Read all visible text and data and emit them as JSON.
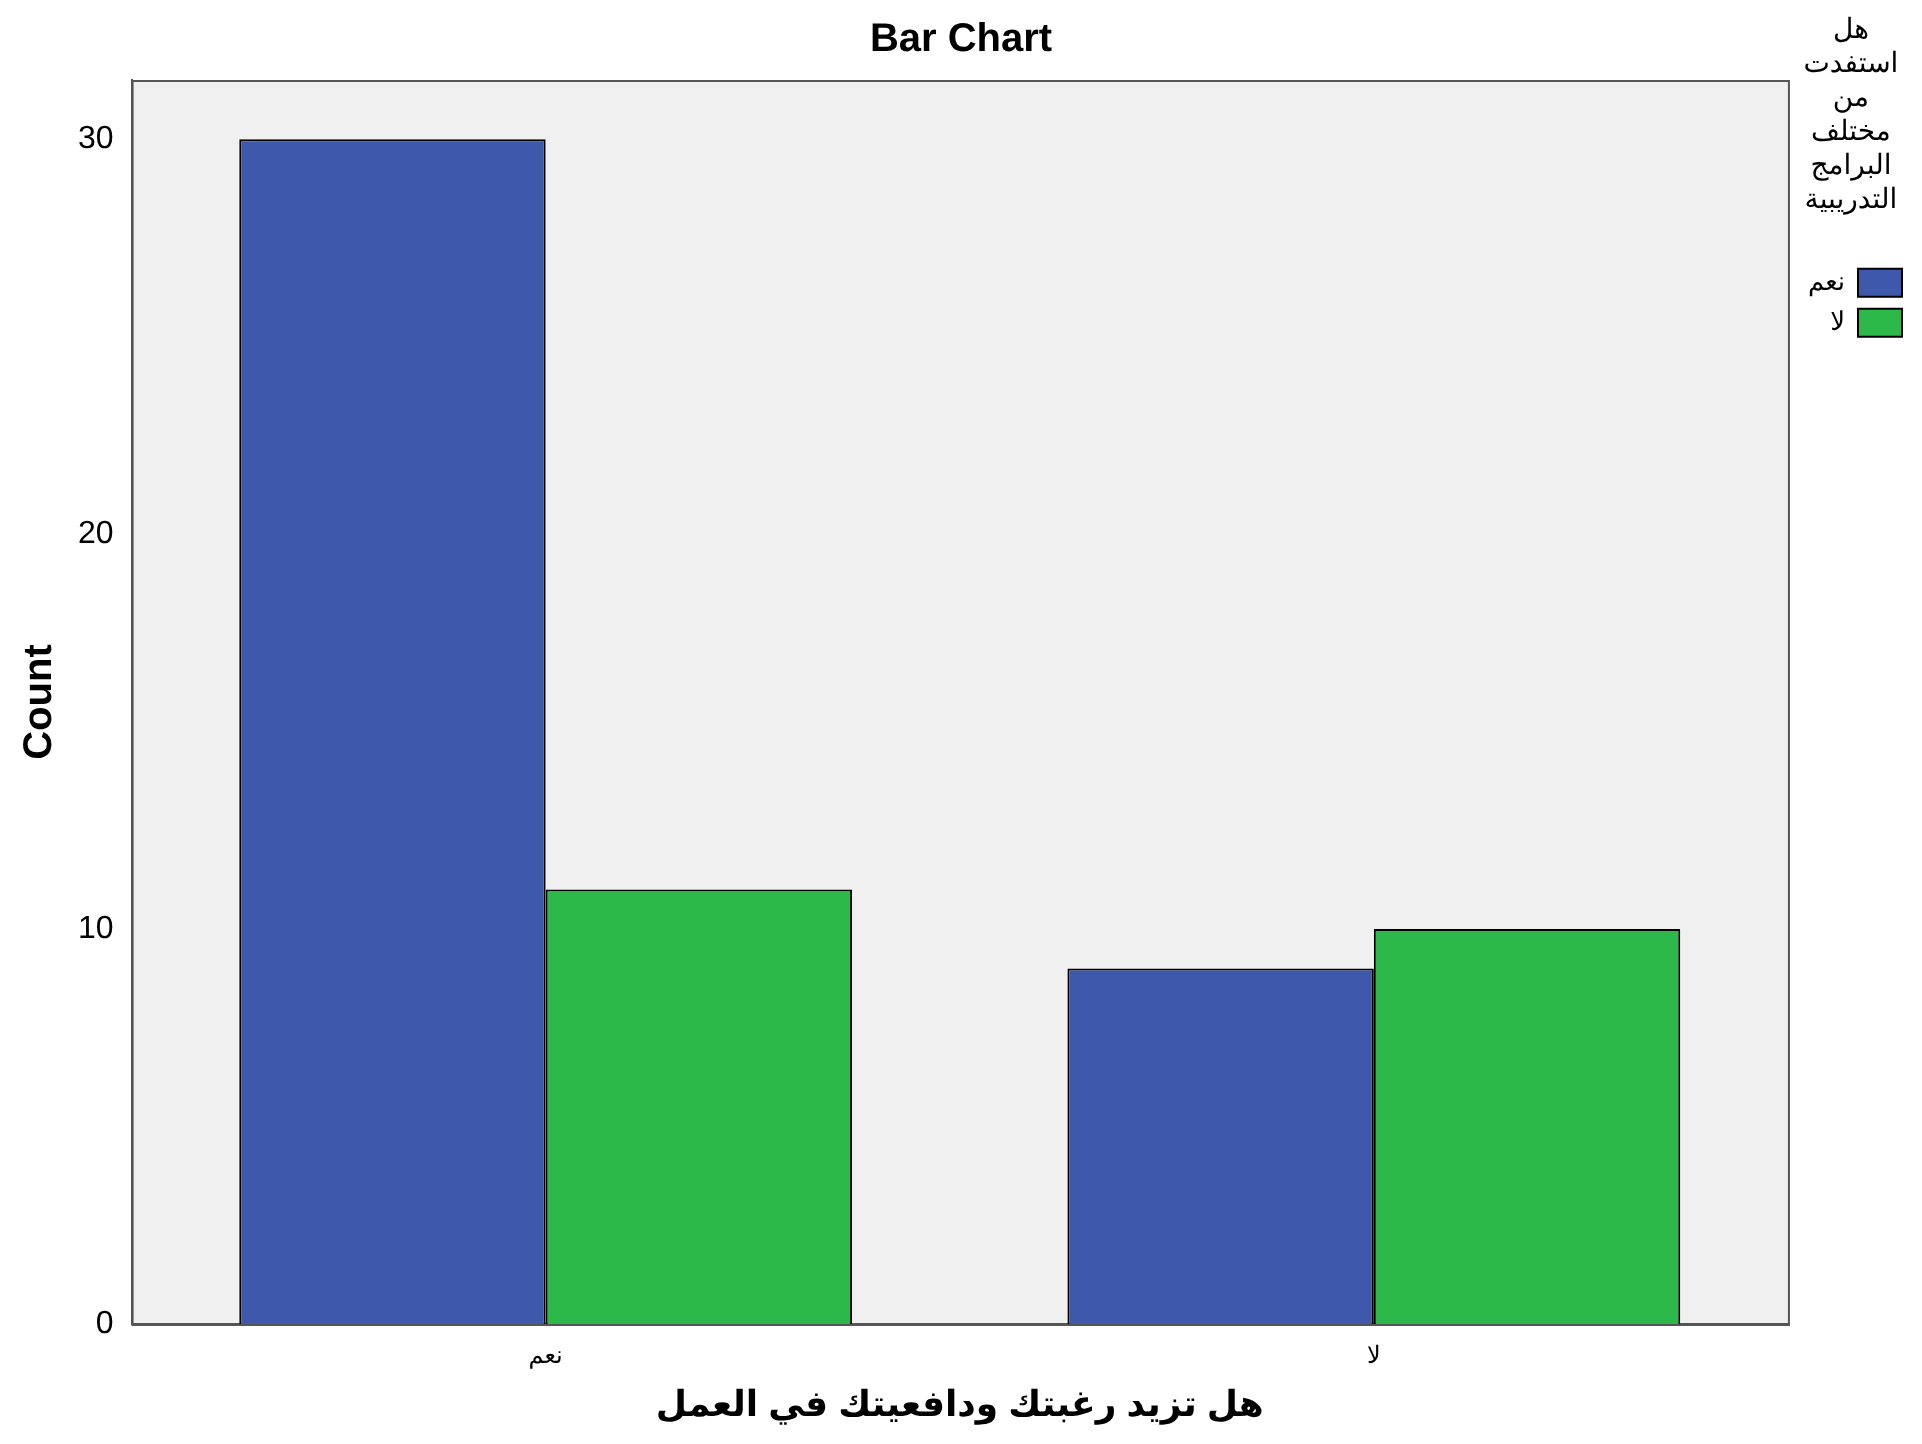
{
  "chart_data": {
    "type": "bar",
    "title": "Bar Chart",
    "xlabel": "هل تزيد رغبتك ودافعيتك في العمل",
    "ylabel": "Count",
    "legend_title": "هل استفدت من مختلف البرامج التدريبية",
    "categories": [
      "نعم",
      "لا"
    ],
    "series": [
      {
        "name": "نعم",
        "color": "#3e58ac",
        "values": [
          30,
          9
        ]
      },
      {
        "name": "لا",
        "color": "#2db84a",
        "values": [
          11,
          10
        ]
      }
    ],
    "ylim": [
      0,
      31.5
    ],
    "yticks": [
      0,
      10,
      20,
      30
    ],
    "grid": false,
    "legend": "right"
  }
}
